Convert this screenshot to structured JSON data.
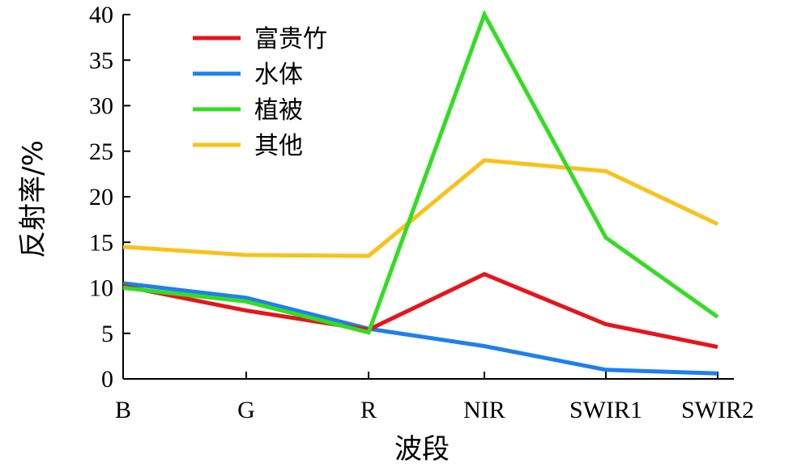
{
  "chart_data": {
    "type": "line",
    "xlabel": "波段",
    "ylabel": "反射率/%",
    "categories": [
      "B",
      "G",
      "R",
      "NIR",
      "SWIR1",
      "SWIR2"
    ],
    "ylim": [
      0,
      40
    ],
    "yticks": [
      0,
      5,
      10,
      15,
      20,
      25,
      30,
      35,
      40
    ],
    "grid": false,
    "legend_position": "top-left",
    "series": [
      {
        "name": "富贵竹",
        "color": "#e8141a",
        "values": [
          10.2,
          7.5,
          5.4,
          11.5,
          6.0,
          3.5
        ]
      },
      {
        "name": "水体",
        "color": "#1e7ff0",
        "values": [
          10.5,
          8.9,
          5.5,
          3.6,
          1.0,
          0.6
        ]
      },
      {
        "name": "植被",
        "color": "#33dd22",
        "values": [
          10.0,
          8.5,
          5.1,
          40.0,
          15.5,
          6.8
        ]
      },
      {
        "name": "其他",
        "color": "#f8c21a",
        "values": [
          14.5,
          13.6,
          13.5,
          24.0,
          22.8,
          17.0
        ]
      }
    ]
  }
}
